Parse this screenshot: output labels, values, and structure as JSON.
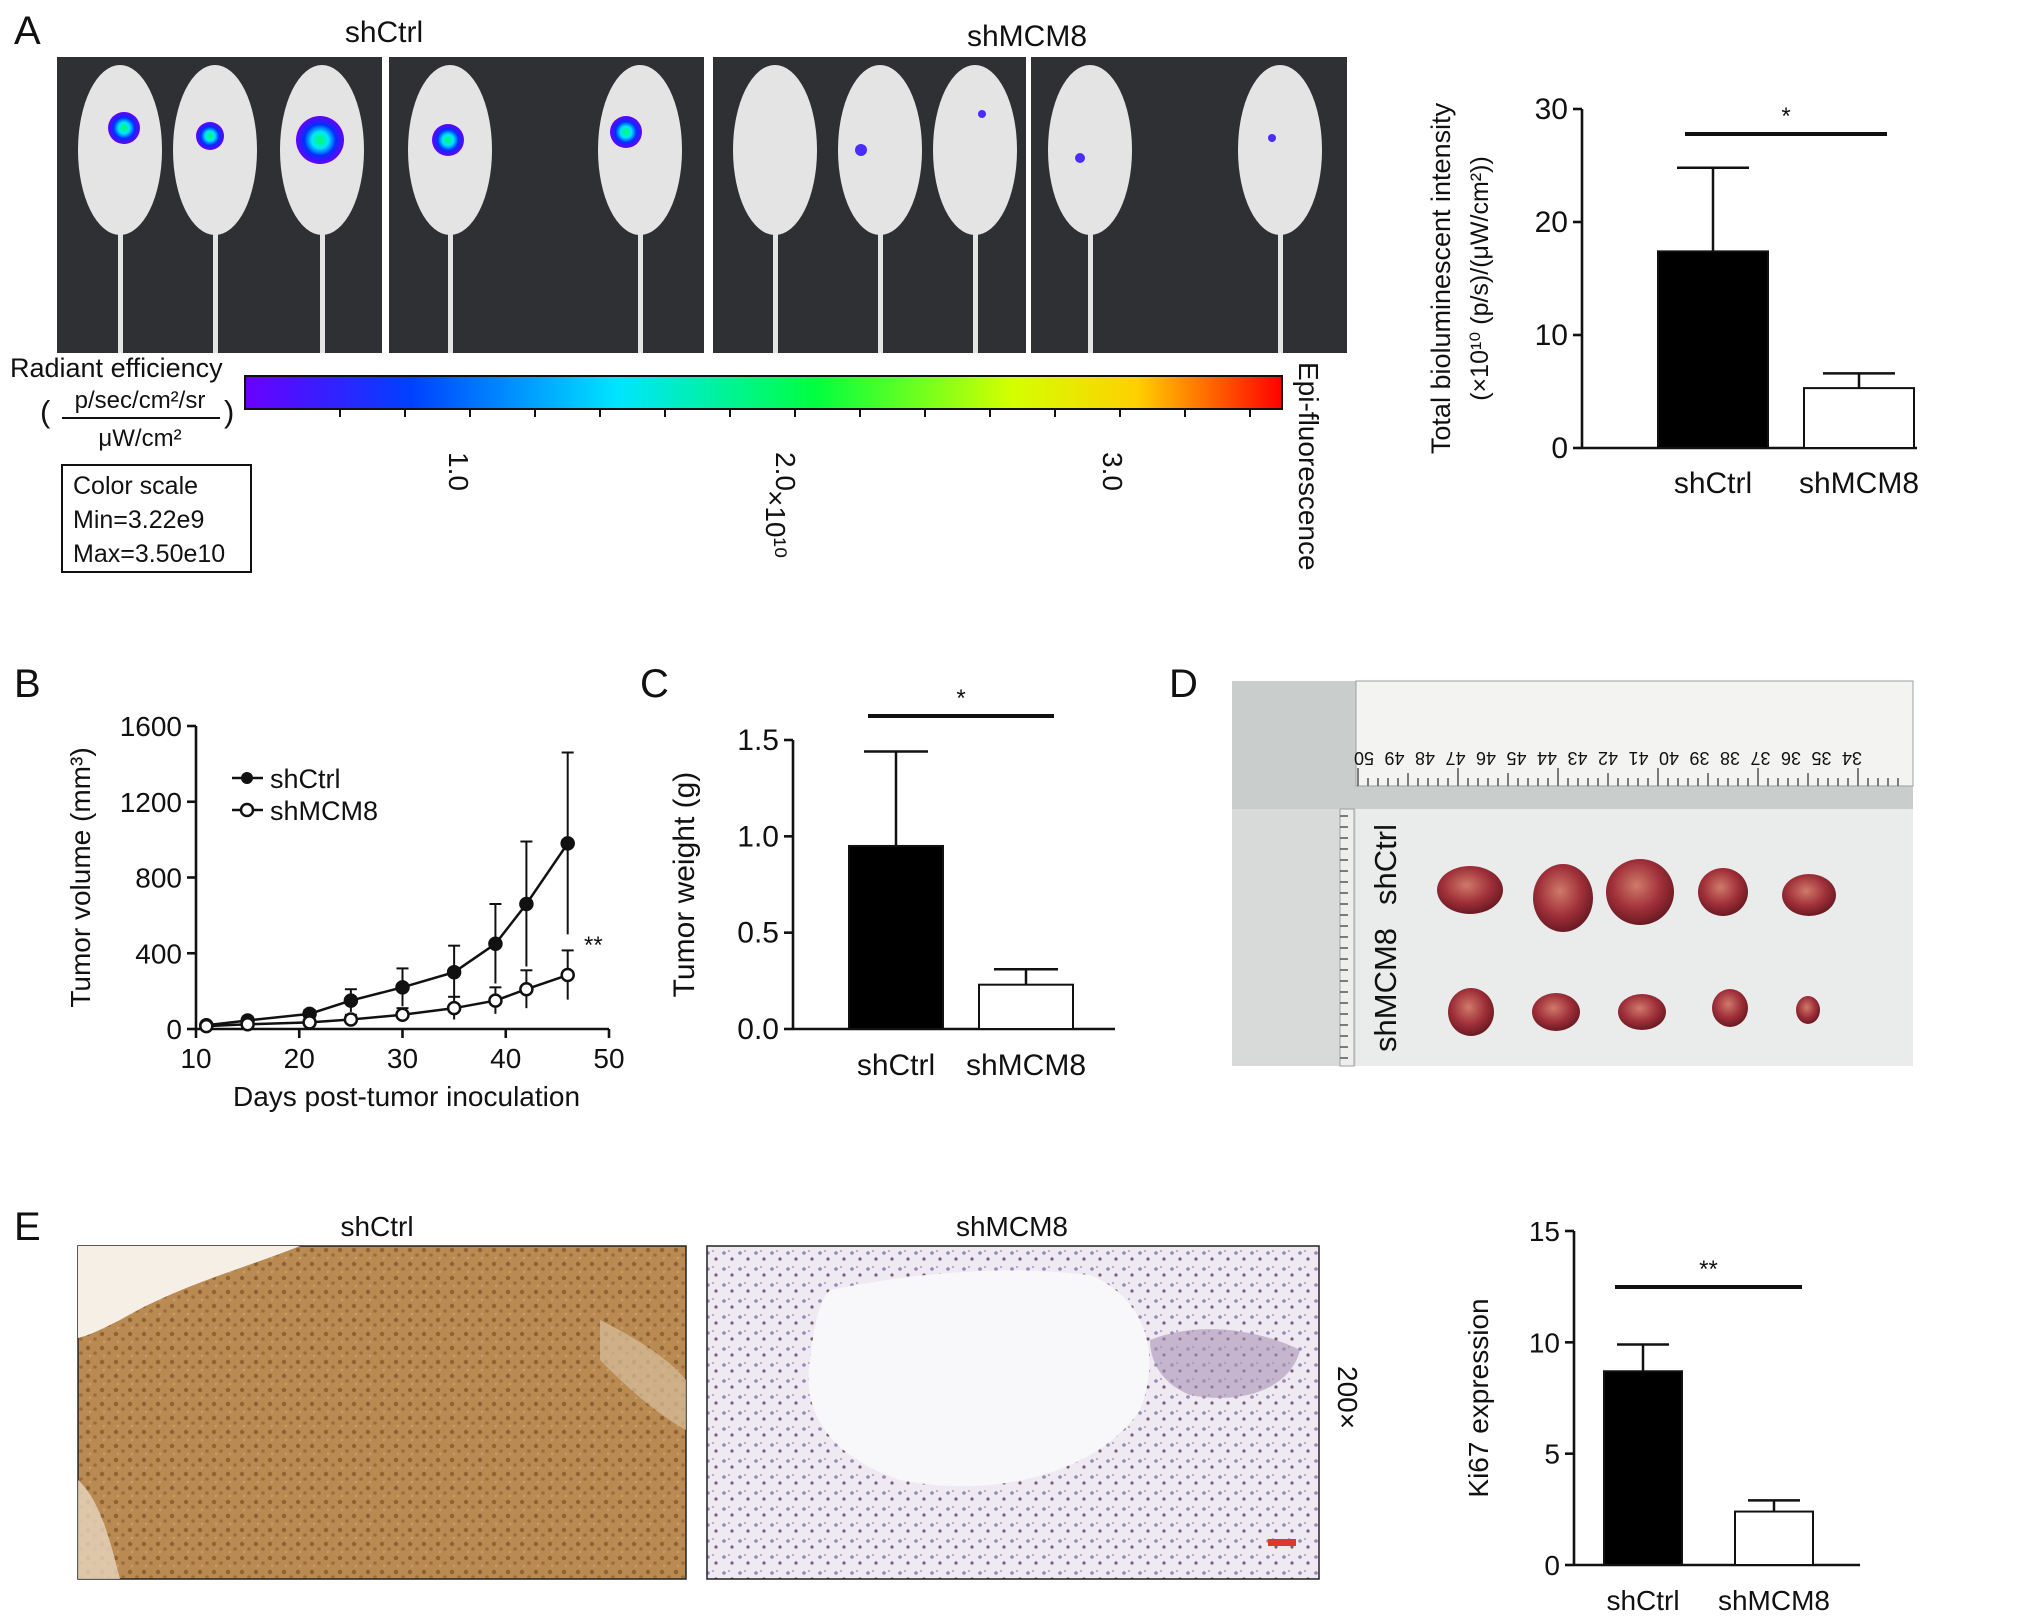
{
  "panels": {
    "A": {
      "letter": "A",
      "group_labels": [
        "shCtrl",
        "shMCM8"
      ],
      "colorbar": {
        "title": "Radiant efficiency",
        "unit_numerator": "p/sec/cm²/sr",
        "unit_denominator": "μW/cm²",
        "ticks": [
          "1.0",
          "2.0",
          "3.0"
        ],
        "multiplier": "×10¹⁰",
        "side_label": "Epi-fluorescence",
        "colors": [
          "#6a00ff",
          "#0040ff",
          "#00e5ff",
          "#00ff40",
          "#d4ff00",
          "#ffd000",
          "#ff0000"
        ]
      },
      "color_scale_box": {
        "title": "Color scale",
        "min": "Min=3.22e9",
        "max": "Max=3.50e10"
      }
    },
    "B": {
      "letter": "B",
      "legend": [
        "shCtrl",
        "shMCM8"
      ],
      "annotation": "**"
    },
    "C": {
      "letter": "C"
    },
    "D": {
      "letter": "D",
      "row_labels": [
        "shCtrl",
        "shMCM8"
      ],
      "ruler_numbers": [
        "50",
        "49",
        "48",
        "47",
        "46",
        "45",
        "44",
        "43",
        "42",
        "41",
        "40",
        "39",
        "38",
        "37",
        "36",
        "35",
        "34"
      ]
    },
    "E": {
      "letter": "E",
      "image_labels": [
        "shCtrl",
        "shMCM8"
      ],
      "magnification": "200×"
    }
  },
  "chart_data": [
    {
      "id": "A",
      "type": "bar",
      "categories": [
        "shCtrl",
        "shMCM8"
      ],
      "values": [
        17.4,
        5.3
      ],
      "errors": [
        7.4,
        1.3
      ],
      "fills": [
        "#000000",
        "#ffffff"
      ],
      "ylabel_line1": "Total bioluminescent intensity",
      "ylabel_line2": "(×10¹⁰ (p/s)/(μW/cm²))",
      "ylim": [
        0,
        30
      ],
      "yticks": [
        0,
        10,
        20,
        30
      ],
      "significance": "*"
    },
    {
      "id": "B",
      "type": "line",
      "xlabel": "Days post-tumor inoculation",
      "ylabel": "Tumor volume (mm³)",
      "xlim": [
        10,
        50
      ],
      "xticks": [
        10,
        20,
        30,
        40,
        50
      ],
      "ylim": [
        0,
        1600
      ],
      "yticks": [
        0,
        400,
        800,
        1200,
        1600
      ],
      "series": [
        {
          "name": "shCtrl",
          "marker": "filled",
          "x": [
            11,
            15,
            21,
            25,
            30,
            35,
            39,
            42,
            46
          ],
          "y": [
            20,
            45,
            80,
            150,
            220,
            300,
            450,
            660,
            980
          ],
          "err": [
            10,
            15,
            20,
            60,
            100,
            140,
            210,
            330,
            480
          ]
        },
        {
          "name": "shMCM8",
          "marker": "open",
          "x": [
            11,
            15,
            21,
            25,
            30,
            35,
            39,
            42,
            46
          ],
          "y": [
            15,
            25,
            35,
            50,
            75,
            110,
            150,
            210,
            285
          ],
          "err": [
            5,
            10,
            15,
            25,
            35,
            60,
            70,
            100,
            130
          ]
        }
      ]
    },
    {
      "id": "C",
      "type": "bar",
      "categories": [
        "shCtrl",
        "shMCM8"
      ],
      "values": [
        0.95,
        0.23
      ],
      "errors": [
        0.49,
        0.08
      ],
      "fills": [
        "#000000",
        "#ffffff"
      ],
      "ylabel": "Tumor weight (g)",
      "ylim": [
        0,
        1.5
      ],
      "yticks": [
        0.0,
        0.5,
        1.0,
        1.5
      ],
      "tick_format": 1,
      "significance": "*"
    },
    {
      "id": "E",
      "type": "bar",
      "categories": [
        "shCtrl",
        "shMCM8"
      ],
      "values": [
        8.7,
        2.4
      ],
      "errors": [
        1.2,
        0.5
      ],
      "fills": [
        "#000000",
        "#ffffff"
      ],
      "ylabel": "Ki67 expression",
      "ylim": [
        0,
        15
      ],
      "yticks": [
        0,
        5,
        10,
        15
      ],
      "significance": "**"
    }
  ]
}
